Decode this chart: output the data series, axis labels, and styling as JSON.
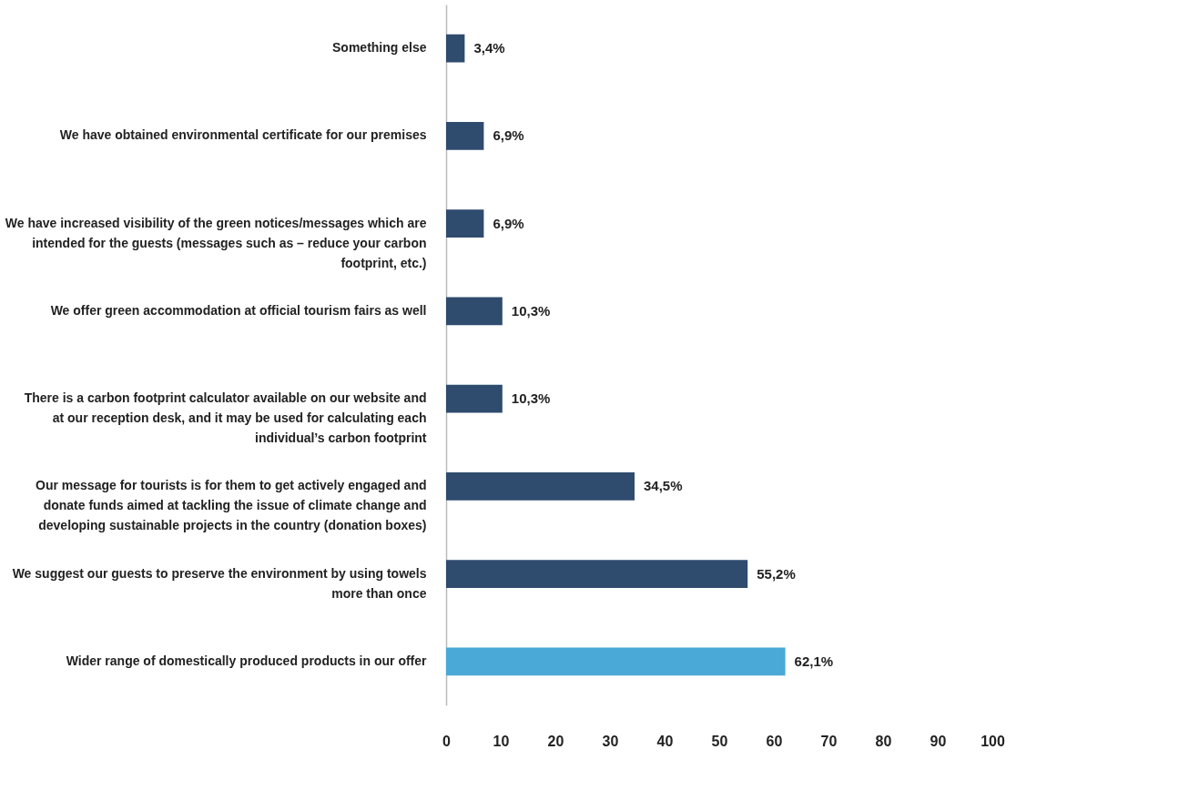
{
  "chart_data": {
    "type": "bar",
    "orientation": "horizontal",
    "categories": [
      "Something else",
      "We have obtained environmental certificate for our premises",
      "We have increased visibility of the green notices/messages which are intended for the guests (messages such as – reduce your carbon footprint, etc.)",
      "We offer green accommodation at official tourism fairs as well",
      "There is a carbon footprint calculator available on our website and at our reception desk, and it may be used for calculating each individual’s carbon footprint",
      "Our message for tourists is for them to get actively engaged and donate funds aimed at tackling the issue of climate change and developing sustainable projects in the country (donation boxes)",
      "We suggest our guests to preserve the environment by using towels more than once",
      "Wider range of domestically produced products in our offer"
    ],
    "values": [
      3.4,
      6.9,
      6.9,
      10.3,
      10.3,
      34.5,
      55.2,
      62.1
    ],
    "value_labels": [
      "3,4%",
      "6,9%",
      "6,9%",
      "10,3%",
      "10,3%",
      "34,5%",
      "55,2%",
      "62,1%"
    ],
    "colors": [
      "#2f4b6e",
      "#2f4b6e",
      "#2f4b6e",
      "#2f4b6e",
      "#2f4b6e",
      "#2f4b6e",
      "#2f4b6e",
      "#4aa9d6"
    ],
    "xlim": [
      0,
      100
    ],
    "xticks": [
      0,
      10,
      20,
      30,
      40,
      50,
      60,
      70,
      80,
      90,
      100
    ],
    "grid": false
  }
}
